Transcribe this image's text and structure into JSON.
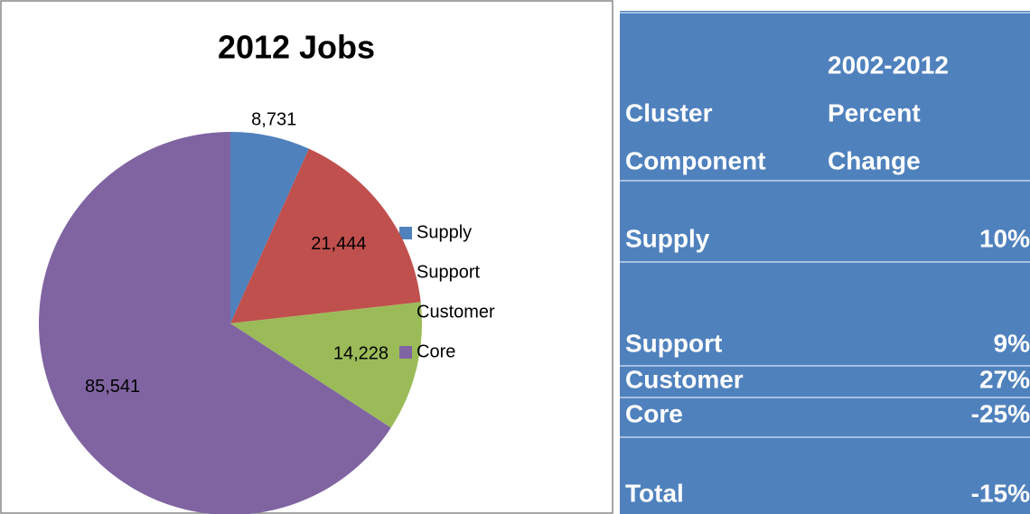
{
  "chart_data": {
    "type": "pie",
    "title": "2012 Jobs",
    "categories": [
      "Supply",
      "Support",
      "Customer",
      "Core"
    ],
    "values": [
      8731,
      21444,
      14228,
      85541
    ],
    "value_labels": [
      "8,731",
      "21,444",
      "14,228",
      "85,541"
    ],
    "colors": [
      "#4f81bd",
      "#c0504d",
      "#9bbb59",
      "#8064a2"
    ],
    "legend": "right"
  },
  "table": {
    "header": [
      "Cluster Component",
      "2002-2012 Percent Change"
    ],
    "rows": [
      [
        "Supply",
        "10%"
      ],
      [
        "Support",
        "9%"
      ],
      [
        "Customer",
        "27%"
      ],
      [
        "Core",
        "-25%"
      ],
      [
        "Total",
        "-15%"
      ]
    ]
  }
}
